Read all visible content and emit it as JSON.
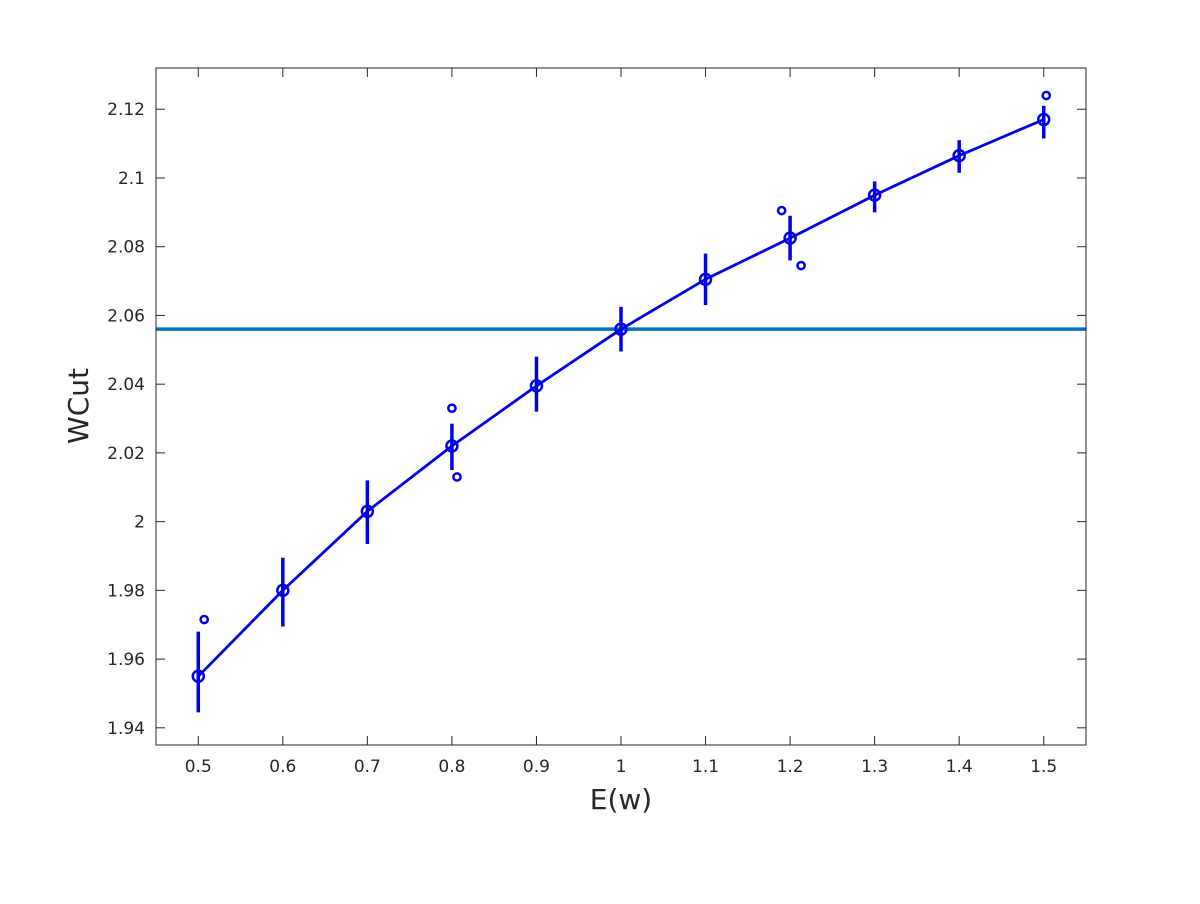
{
  "chart_data": {
    "type": "line",
    "title": "",
    "xlabel": "E(w)",
    "ylabel": "WCut",
    "xlim": [
      0.45,
      1.55
    ],
    "ylim": [
      1.935,
      2.132
    ],
    "x_ticks": [
      0.5,
      0.6,
      0.7,
      0.8,
      0.9,
      1.0,
      1.1,
      1.2,
      1.3,
      1.4,
      1.5
    ],
    "x_tick_labels": [
      "0.5",
      "0.6",
      "0.7",
      "0.8",
      "0.9",
      "1",
      "1.1",
      "1.2",
      "1.3",
      "1.4",
      "1.5"
    ],
    "y_ticks": [
      1.94,
      1.96,
      1.98,
      2.0,
      2.02,
      2.04,
      2.06,
      2.08,
      2.1,
      2.12
    ],
    "y_tick_labels": [
      "1.94",
      "1.96",
      "1.98",
      "2",
      "2.02",
      "2.04",
      "2.06",
      "2.08",
      "2.1",
      "2.12"
    ],
    "grid": false,
    "legend": "none",
    "series": [
      {
        "color": "#0000e6",
        "marker": "circle",
        "x": [
          0.5,
          0.6,
          0.7,
          0.8,
          0.9,
          1.0,
          1.1,
          1.2,
          1.3,
          1.4,
          1.5
        ],
        "y": [
          1.955,
          1.98,
          2.003,
          2.022,
          2.0395,
          2.056,
          2.0705,
          2.0825,
          2.095,
          2.1065,
          2.117
        ],
        "error_low": [
          1.9445,
          1.9695,
          1.9935,
          2.015,
          2.032,
          2.0495,
          2.063,
          2.076,
          2.09,
          2.1015,
          2.1115
        ],
        "error_high": [
          1.968,
          1.9895,
          2.012,
          2.0285,
          2.048,
          2.0625,
          2.078,
          2.089,
          2.099,
          2.111,
          2.121
        ]
      }
    ],
    "outliers": {
      "color": "#0000e6",
      "marker": "small-circle",
      "x": [
        0.507,
        0.8,
        0.806,
        1.19,
        1.213,
        1.503
      ],
      "y": [
        1.9715,
        2.033,
        2.013,
        2.0905,
        2.0745,
        2.124
      ]
    },
    "reference_line": {
      "orientation": "horizontal",
      "y": 2.056,
      "color": "#0072bd"
    }
  }
}
